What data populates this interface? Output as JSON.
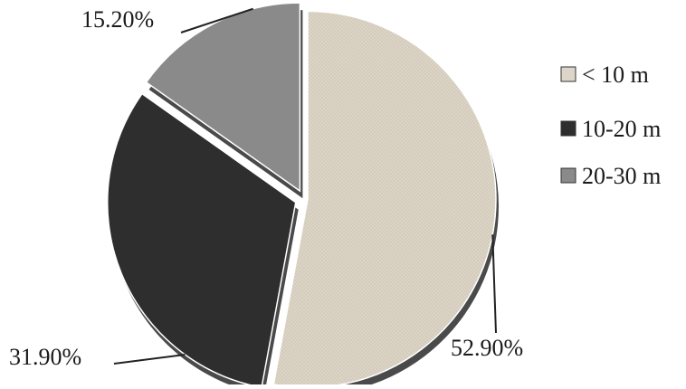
{
  "chart_data": {
    "type": "pie",
    "title": "",
    "slices": [
      {
        "label": "< 10 m",
        "value": 52.9,
        "display": "52.90%",
        "color": "#ddd6c8"
      },
      {
        "label": "10-20 m",
        "value": 31.9,
        "display": "31.90%",
        "color": "#2e2e2e"
      },
      {
        "label": "20-30 m",
        "value": 15.2,
        "display": "15.20%",
        "color": "#8a8a8a"
      }
    ],
    "legend": {
      "position": "right",
      "entries": [
        "< 10 m",
        "10-20 m",
        "20-30 m"
      ]
    },
    "style": "3d-exploded"
  }
}
